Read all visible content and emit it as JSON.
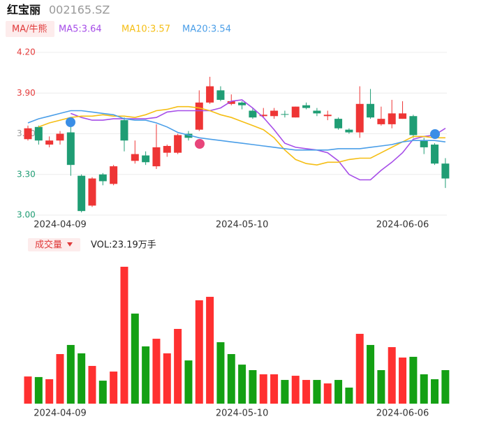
{
  "header": {
    "name": "红宝丽",
    "code": "002165.SZ"
  },
  "chart_data": [
    {
      "type": "candlestick",
      "legend_button": "MA/牛熊",
      "categories": [
        null,
        null,
        null,
        "2024-04-09",
        null,
        null,
        null,
        null,
        null,
        null,
        null,
        null,
        null,
        null,
        null,
        null,
        null,
        null,
        null,
        null,
        "2024-05-10",
        null,
        null,
        null,
        null,
        null,
        null,
        null,
        null,
        null,
        null,
        null,
        null,
        null,
        null,
        "2024-06-06",
        null,
        null,
        null,
        null
      ],
      "open": [
        3.56,
        3.65,
        3.52,
        3.55,
        3.61,
        3.29,
        3.07,
        3.3,
        3.23,
        3.7,
        3.4,
        3.44,
        3.36,
        3.46,
        3.46,
        3.6,
        3.63,
        3.83,
        3.92,
        3.82,
        3.83,
        3.77,
        3.73,
        3.73,
        3.745,
        3.72,
        3.81,
        3.77,
        3.73,
        3.71,
        3.63,
        3.61,
        3.82,
        3.67,
        3.67,
        3.71,
        3.73,
        3.55,
        3.52,
        3.38
      ],
      "close": [
        3.64,
        3.55,
        3.55,
        3.6,
        3.37,
        3.03,
        3.27,
        3.25,
        3.36,
        3.55,
        3.45,
        3.39,
        3.5,
        3.51,
        3.59,
        3.57,
        3.83,
        3.95,
        3.85,
        3.84,
        3.81,
        3.72,
        3.74,
        3.77,
        3.74,
        3.8,
        3.79,
        3.75,
        3.74,
        3.64,
        3.61,
        3.82,
        3.72,
        3.71,
        3.75,
        3.75,
        3.59,
        3.5,
        3.38,
        3.27
      ],
      "high": [
        3.66,
        3.66,
        3.58,
        3.62,
        3.65,
        3.3,
        3.28,
        3.31,
        3.37,
        3.72,
        3.55,
        3.47,
        3.67,
        3.52,
        3.6,
        3.62,
        3.92,
        4.02,
        3.95,
        3.89,
        3.84,
        3.79,
        3.79,
        3.79,
        3.77,
        3.8,
        3.83,
        3.79,
        3.77,
        3.72,
        3.64,
        3.95,
        3.93,
        3.8,
        3.85,
        3.84,
        3.74,
        3.57,
        3.53,
        3.42
      ],
      "low": [
        3.55,
        3.52,
        3.5,
        3.52,
        3.29,
        3.02,
        3.06,
        3.22,
        3.22,
        3.47,
        3.38,
        3.37,
        3.34,
        3.43,
        3.45,
        3.55,
        3.62,
        3.82,
        3.84,
        3.81,
        3.78,
        3.71,
        3.72,
        3.71,
        3.72,
        3.72,
        3.78,
        3.73,
        3.7,
        3.63,
        3.6,
        3.57,
        3.71,
        3.66,
        3.64,
        3.71,
        3.57,
        3.45,
        3.37,
        3.2
      ],
      "up_color": "#ee3535",
      "down_color": "#1f9d74",
      "ylim": [
        3.0,
        4.2
      ],
      "yticks": [
        {
          "value": 3.0,
          "label": "3.00"
        },
        {
          "value": 3.3,
          "label": "3.30"
        },
        {
          "value": 3.6,
          "label": "3.60"
        },
        {
          "value": 3.9,
          "label": "3.90"
        },
        {
          "value": 4.2,
          "label": "4.20"
        }
      ],
      "ytick_colors": [
        "#1f9d74",
        "#1f9d74",
        "#999999",
        "#e53b3b",
        "#e53b3b"
      ],
      "grid": true,
      "series": [
        {
          "name": "MA5:3.64",
          "color": "#a64de8",
          "values": [
            null,
            null,
            null,
            null,
            3.75,
            3.72,
            3.7,
            3.7,
            3.71,
            3.71,
            3.71,
            3.71,
            3.72,
            3.76,
            3.77,
            3.77,
            3.77,
            3.77,
            3.79,
            3.84,
            3.85,
            3.79,
            3.72,
            3.63,
            3.53,
            3.5,
            3.49,
            3.48,
            3.46,
            3.4,
            3.3,
            3.26,
            3.26,
            3.33,
            3.39,
            3.46,
            3.56,
            3.58,
            3.59,
            3.64
          ]
        },
        {
          "name": "MA10:3.57",
          "color": "#f5be14",
          "values": [
            null,
            3.65,
            3.68,
            3.7,
            3.72,
            3.73,
            3.73,
            3.74,
            3.73,
            3.73,
            3.72,
            3.74,
            3.77,
            3.78,
            3.8,
            3.8,
            3.79,
            3.77,
            3.74,
            3.72,
            3.69,
            3.66,
            3.63,
            3.57,
            3.48,
            3.41,
            3.38,
            3.37,
            3.39,
            3.39,
            3.41,
            3.42,
            3.42,
            3.46,
            3.5,
            3.54,
            3.58,
            3.58,
            3.57,
            3.57
          ]
        },
        {
          "name": "MA20:3.54",
          "color": "#4a9ee8",
          "values": [
            3.68,
            3.71,
            3.73,
            3.75,
            3.77,
            3.77,
            3.76,
            3.75,
            3.74,
            3.71,
            3.7,
            3.7,
            3.68,
            3.65,
            3.61,
            3.59,
            3.57,
            3.56,
            3.55,
            3.54,
            3.53,
            3.52,
            3.51,
            3.5,
            3.49,
            3.48,
            3.48,
            3.48,
            3.48,
            3.49,
            3.49,
            3.49,
            3.5,
            3.51,
            3.52,
            3.54,
            3.55,
            3.55,
            3.55,
            3.54
          ]
        }
      ]
    },
    {
      "type": "bar",
      "legend_button": "成交量",
      "vol_label": "VOL:23.19万手",
      "values": [
        18.8,
        18.4,
        16.9,
        34.3,
        40.6,
        34.8,
        26.1,
        15.9,
        22.2,
        94.7,
        62.3,
        39.6,
        44.9,
        34.8,
        51.7,
        29.9,
        71.5,
        73.9,
        42.5,
        34.3,
        27.0,
        23.2,
        20.3,
        20.3,
        16.4,
        19.3,
        16.4,
        16.4,
        14.0,
        16.4,
        11.1,
        48.3,
        40.6,
        23.2,
        39.1,
        31.9,
        32.4,
        20.3,
        16.9,
        23.19
      ],
      "colors": [
        "#ff3030",
        "#14a014",
        "#ff3030",
        "#ff3030",
        "#14a014",
        "#14a014",
        "#ff3030",
        "#14a014",
        "#ff3030",
        "#ff3030",
        "#14a014",
        "#14a014",
        "#ff3030",
        "#ff3030",
        "#ff3030",
        "#14a014",
        "#ff3030",
        "#ff3030",
        "#14a014",
        "#14a014",
        "#14a014",
        "#14a014",
        "#ff3030",
        "#ff3030",
        "#14a014",
        "#ff3030",
        "#ff3030",
        "#14a014",
        "#ff3030",
        "#14a014",
        "#14a014",
        "#ff3030",
        "#14a014",
        "#14a014",
        "#ff3030",
        "#ff3030",
        "#14a014",
        "#14a014",
        "#14a014",
        "#14a014"
      ],
      "ylim": [
        0,
        100
      ]
    }
  ]
}
